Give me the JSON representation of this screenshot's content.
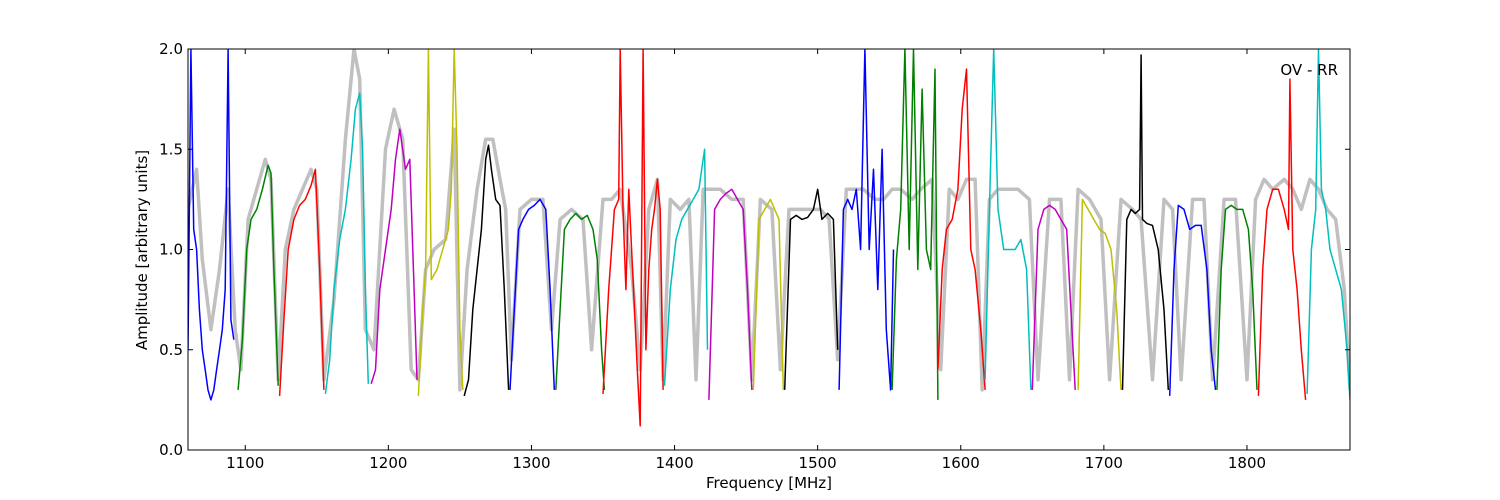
{
  "chart_data": {
    "type": "line",
    "title": "",
    "xlabel": "Frequency [MHz]",
    "ylabel": "Amplitude [arbitrary units]",
    "xlim": [
      1060,
      1872
    ],
    "ylim": [
      0.0,
      2.0
    ],
    "xticks": [
      1100,
      1200,
      1300,
      1400,
      1500,
      1600,
      1700,
      1800
    ],
    "yticks": [
      0.0,
      0.5,
      1.0,
      1.5,
      2.0
    ],
    "xtick_labels": [
      "1100",
      "1200",
      "1300",
      "1400",
      "1500",
      "1600",
      "1700",
      "1800"
    ],
    "ytick_labels": [
      "0.0",
      "0.5",
      "1.0",
      "1.5",
      "2.0"
    ],
    "annotation": "OV - RR",
    "grid": false,
    "background_series_color": "#c0c0c0",
    "background_series": {
      "x": [
        1060,
        1066,
        1070,
        1076,
        1082,
        1088,
        1093,
        1097,
        1102,
        1108,
        1114,
        1118,
        1123,
        1128,
        1134,
        1140,
        1146,
        1150,
        1155,
        1162,
        1170,
        1176,
        1180,
        1184,
        1190,
        1198,
        1204,
        1210,
        1216,
        1221,
        1226,
        1232,
        1240,
        1246,
        1250,
        1255,
        1262,
        1268,
        1273,
        1278,
        1282,
        1286,
        1292,
        1300,
        1308,
        1314,
        1320,
        1328,
        1336,
        1342,
        1350,
        1356,
        1362,
        1370,
        1376,
        1382,
        1388,
        1392,
        1397,
        1404,
        1410,
        1415,
        1420,
        1426,
        1432,
        1440,
        1448,
        1454,
        1460,
        1468,
        1474,
        1480,
        1488,
        1496,
        1502,
        1508,
        1514,
        1520,
        1526,
        1532,
        1540,
        1546,
        1552,
        1558,
        1566,
        1572,
        1580,
        1586,
        1592,
        1598,
        1604,
        1610,
        1615,
        1620,
        1626,
        1632,
        1640,
        1648,
        1654,
        1662,
        1670,
        1676,
        1682,
        1690,
        1698,
        1704,
        1712,
        1720,
        1726,
        1734,
        1742,
        1748,
        1754,
        1762,
        1770,
        1776,
        1784,
        1792,
        1800,
        1806,
        1812,
        1818,
        1826,
        1832,
        1838,
        1844,
        1850,
        1856,
        1862,
        1868,
        1872
      ],
      "y": [
        1.2,
        1.4,
        0.95,
        0.6,
        0.9,
        1.3,
        0.6,
        0.4,
        1.15,
        1.3,
        1.45,
        1.35,
        0.35,
        1.0,
        1.2,
        1.3,
        1.4,
        1.3,
        0.35,
        0.75,
        1.55,
        2.0,
        1.85,
        0.6,
        0.5,
        1.5,
        1.7,
        1.55,
        0.4,
        0.35,
        0.9,
        1.0,
        1.05,
        1.6,
        0.3,
        0.9,
        1.3,
        1.55,
        1.55,
        1.35,
        1.2,
        0.45,
        1.2,
        1.25,
        1.25,
        0.6,
        1.15,
        1.2,
        1.15,
        0.5,
        1.25,
        1.25,
        1.3,
        0.9,
        0.4,
        1.2,
        1.35,
        0.35,
        1.25,
        1.2,
        1.25,
        0.35,
        1.3,
        1.3,
        1.3,
        1.25,
        1.25,
        0.35,
        1.25,
        1.2,
        0.4,
        1.2,
        1.2,
        1.2,
        1.2,
        1.15,
        0.45,
        1.3,
        1.3,
        1.3,
        1.25,
        1.25,
        1.3,
        1.3,
        1.25,
        1.3,
        1.35,
        0.4,
        1.3,
        1.25,
        1.35,
        1.35,
        0.3,
        1.25,
        1.3,
        1.3,
        1.3,
        1.25,
        0.35,
        1.25,
        1.25,
        0.35,
        1.3,
        1.25,
        1.15,
        0.35,
        1.25,
        1.2,
        1.15,
        0.35,
        1.25,
        1.2,
        0.35,
        1.25,
        1.25,
        0.35,
        1.25,
        1.25,
        0.35,
        1.25,
        1.35,
        1.3,
        1.35,
        1.3,
        1.2,
        1.35,
        1.3,
        1.2,
        1.15,
        0.8,
        0.3
      ]
    },
    "series": [
      {
        "color": "#0000ff",
        "x": [
          1060,
          1062,
          1064,
          1066,
          1068,
          1070,
          1072,
          1074,
          1076,
          1078,
          1080,
          1082,
          1084,
          1086,
          1088,
          1090,
          1092
        ],
        "y": [
          0.5,
          2.0,
          1.1,
          1.0,
          0.7,
          0.5,
          0.4,
          0.3,
          0.25,
          0.3,
          0.4,
          0.5,
          0.6,
          0.8,
          2.0,
          0.65,
          0.55
        ]
      },
      {
        "color": "#008000",
        "x": [
          1095,
          1098,
          1101,
          1104,
          1108,
          1112,
          1116,
          1118,
          1120,
          1123
        ],
        "y": [
          0.3,
          0.55,
          1.0,
          1.15,
          1.2,
          1.3,
          1.42,
          1.38,
          0.9,
          0.32
        ]
      },
      {
        "color": "#ff0000",
        "x": [
          1124,
          1127,
          1130,
          1134,
          1138,
          1142,
          1146,
          1149,
          1152,
          1155
        ],
        "y": [
          0.27,
          0.65,
          1.0,
          1.15,
          1.22,
          1.25,
          1.32,
          1.4,
          0.9,
          0.3
        ]
      },
      {
        "color": "#00bfbf",
        "x": [
          1156,
          1159,
          1162,
          1166,
          1170,
          1174,
          1177,
          1180,
          1182,
          1184,
          1186
        ],
        "y": [
          0.28,
          0.45,
          0.8,
          1.05,
          1.2,
          1.45,
          1.7,
          1.78,
          1.5,
          0.8,
          0.33
        ]
      },
      {
        "color": "#bf00bf",
        "x": [
          1188,
          1191,
          1194,
          1198,
          1202,
          1205,
          1208,
          1212,
          1215,
          1218,
          1220
        ],
        "y": [
          0.33,
          0.4,
          0.8,
          1.0,
          1.2,
          1.45,
          1.6,
          1.4,
          1.45,
          0.8,
          0.35
        ]
      },
      {
        "color": "#bfbf00",
        "x": [
          1221,
          1224,
          1226,
          1228,
          1230,
          1234,
          1238,
          1242,
          1244,
          1246,
          1248,
          1250,
          1252
        ],
        "y": [
          0.27,
          0.7,
          0.9,
          2.0,
          0.85,
          0.9,
          1.0,
          1.1,
          1.3,
          2.0,
          1.5,
          0.6,
          0.3
        ]
      },
      {
        "color": "#000000",
        "x": [
          1253,
          1256,
          1259,
          1262,
          1265,
          1268,
          1270,
          1272,
          1275,
          1278,
          1281,
          1284
        ],
        "y": [
          0.27,
          0.35,
          0.7,
          0.9,
          1.1,
          1.45,
          1.52,
          1.4,
          1.25,
          1.22,
          0.8,
          0.3
        ]
      },
      {
        "color": "#0000ff",
        "x": [
          1285,
          1288,
          1291,
          1294,
          1298,
          1302,
          1306,
          1310,
          1313,
          1316
        ],
        "y": [
          0.3,
          0.7,
          1.1,
          1.15,
          1.2,
          1.22,
          1.25,
          1.2,
          0.8,
          0.3
        ]
      },
      {
        "color": "#008000",
        "x": [
          1317,
          1320,
          1323,
          1327,
          1331,
          1335,
          1339,
          1343,
          1346,
          1349,
          1351
        ],
        "y": [
          0.3,
          0.7,
          1.1,
          1.15,
          1.18,
          1.15,
          1.17,
          1.1,
          0.95,
          0.5,
          0.3
        ]
      },
      {
        "color": "#ff0000",
        "x": [
          1350,
          1354,
          1358,
          1361,
          1362,
          1364,
          1366,
          1368,
          1370,
          1372,
          1374,
          1376,
          1378,
          1380,
          1382,
          1384,
          1386,
          1388,
          1390,
          1392
        ],
        "y": [
          0.28,
          0.8,
          1.2,
          1.25,
          2.0,
          1.2,
          0.8,
          1.3,
          1.0,
          0.7,
          0.4,
          0.12,
          2.0,
          0.5,
          0.9,
          1.1,
          1.2,
          1.35,
          1.2,
          0.3
        ]
      },
      {
        "color": "#00bfbf",
        "x": [
          1393,
          1397,
          1401,
          1405,
          1409,
          1413,
          1417,
          1419,
          1421,
          1423
        ],
        "y": [
          0.32,
          0.8,
          1.05,
          1.15,
          1.2,
          1.25,
          1.3,
          1.4,
          1.5,
          0.5
        ]
      },
      {
        "color": "#bf00bf",
        "x": [
          1424,
          1428,
          1432,
          1436,
          1440,
          1444,
          1448,
          1451,
          1454
        ],
        "y": [
          0.25,
          1.2,
          1.25,
          1.28,
          1.3,
          1.25,
          1.2,
          0.8,
          0.3
        ]
      },
      {
        "color": "#bfbf00",
        "x": [
          1455,
          1459,
          1463,
          1467,
          1470,
          1473,
          1476
        ],
        "y": [
          0.3,
          1.15,
          1.2,
          1.25,
          1.2,
          1.15,
          0.3
        ]
      },
      {
        "color": "#000000",
        "x": [
          1477,
          1481,
          1485,
          1489,
          1493,
          1497,
          1500,
          1503,
          1507,
          1511,
          1514
        ],
        "y": [
          0.3,
          1.15,
          1.17,
          1.15,
          1.16,
          1.2,
          1.3,
          1.15,
          1.18,
          1.15,
          0.5
        ]
      },
      {
        "color": "#0000ff",
        "x": [
          1515,
          1518,
          1521,
          1524,
          1527,
          1530,
          1533,
          1536,
          1539,
          1542,
          1545,
          1548,
          1551,
          1553
        ],
        "y": [
          0.3,
          1.2,
          1.25,
          1.2,
          1.3,
          1.0,
          2.0,
          1.0,
          1.4,
          0.8,
          1.5,
          0.6,
          0.3,
          1.0
        ]
      },
      {
        "color": "#008000",
        "x": [
          1552,
          1555,
          1558,
          1561,
          1564,
          1567,
          1570,
          1573,
          1576,
          1579,
          1582,
          1584
        ],
        "y": [
          0.3,
          0.95,
          1.2,
          2.0,
          1.0,
          2.0,
          0.9,
          1.8,
          1.0,
          0.9,
          1.9,
          0.25
        ]
      },
      {
        "color": "#ff0000",
        "x": [
          1584,
          1587,
          1590,
          1594,
          1598,
          1601,
          1604,
          1607,
          1610,
          1614,
          1617
        ],
        "y": [
          0.4,
          0.9,
          1.1,
          1.15,
          1.3,
          1.7,
          1.9,
          1.0,
          0.9,
          0.6,
          0.3
        ]
      },
      {
        "color": "#00bfbf",
        "x": [
          1617,
          1620,
          1623,
          1626,
          1630,
          1634,
          1638,
          1642,
          1646,
          1649
        ],
        "y": [
          0.35,
          1.2,
          2.0,
          1.2,
          1.0,
          1.0,
          1.0,
          1.05,
          0.9,
          0.3
        ]
      },
      {
        "color": "#bf00bf",
        "x": [
          1650,
          1654,
          1658,
          1662,
          1666,
          1670,
          1674,
          1677,
          1680
        ],
        "y": [
          0.3,
          1.1,
          1.2,
          1.22,
          1.2,
          1.15,
          1.1,
          0.7,
          0.3
        ]
      },
      {
        "color": "#bfbf00",
        "x": [
          1682,
          1685,
          1689,
          1693,
          1697,
          1701,
          1705,
          1709,
          1712
        ],
        "y": [
          0.3,
          1.25,
          1.2,
          1.15,
          1.1,
          1.08,
          1.0,
          0.7,
          0.3
        ]
      },
      {
        "color": "#000000",
        "x": [
          1713,
          1716,
          1719,
          1722,
          1725,
          1726,
          1727,
          1730,
          1734,
          1738,
          1742,
          1745
        ],
        "y": [
          0.3,
          1.15,
          1.2,
          1.18,
          1.2,
          1.97,
          1.15,
          1.13,
          1.12,
          1.0,
          0.7,
          0.3
        ]
      },
      {
        "color": "#0000ff",
        "x": [
          1746,
          1749,
          1752,
          1756,
          1760,
          1764,
          1768,
          1772,
          1775,
          1778
        ],
        "y": [
          0.27,
          0.9,
          1.22,
          1.2,
          1.1,
          1.12,
          1.12,
          0.9,
          0.5,
          0.3
        ]
      },
      {
        "color": "#008000",
        "x": [
          1779,
          1782,
          1785,
          1789,
          1793,
          1797,
          1801,
          1804,
          1807
        ],
        "y": [
          0.3,
          0.9,
          1.2,
          1.22,
          1.2,
          1.2,
          1.1,
          0.8,
          0.3
        ]
      },
      {
        "color": "#ff0000",
        "x": [
          1808,
          1811,
          1814,
          1818,
          1822,
          1826,
          1829,
          1830,
          1832,
          1835,
          1838,
          1841
        ],
        "y": [
          0.27,
          0.9,
          1.2,
          1.3,
          1.3,
          1.2,
          1.1,
          1.85,
          1.0,
          0.8,
          0.5,
          0.25
        ]
      },
      {
        "color": "#00bfbf",
        "x": [
          1842,
          1845,
          1848,
          1850,
          1852,
          1855,
          1858,
          1862,
          1866,
          1870,
          1872
        ],
        "y": [
          0.28,
          1.0,
          1.2,
          2.0,
          1.3,
          1.2,
          1.0,
          0.9,
          0.8,
          0.5,
          0.25
        ]
      }
    ]
  }
}
